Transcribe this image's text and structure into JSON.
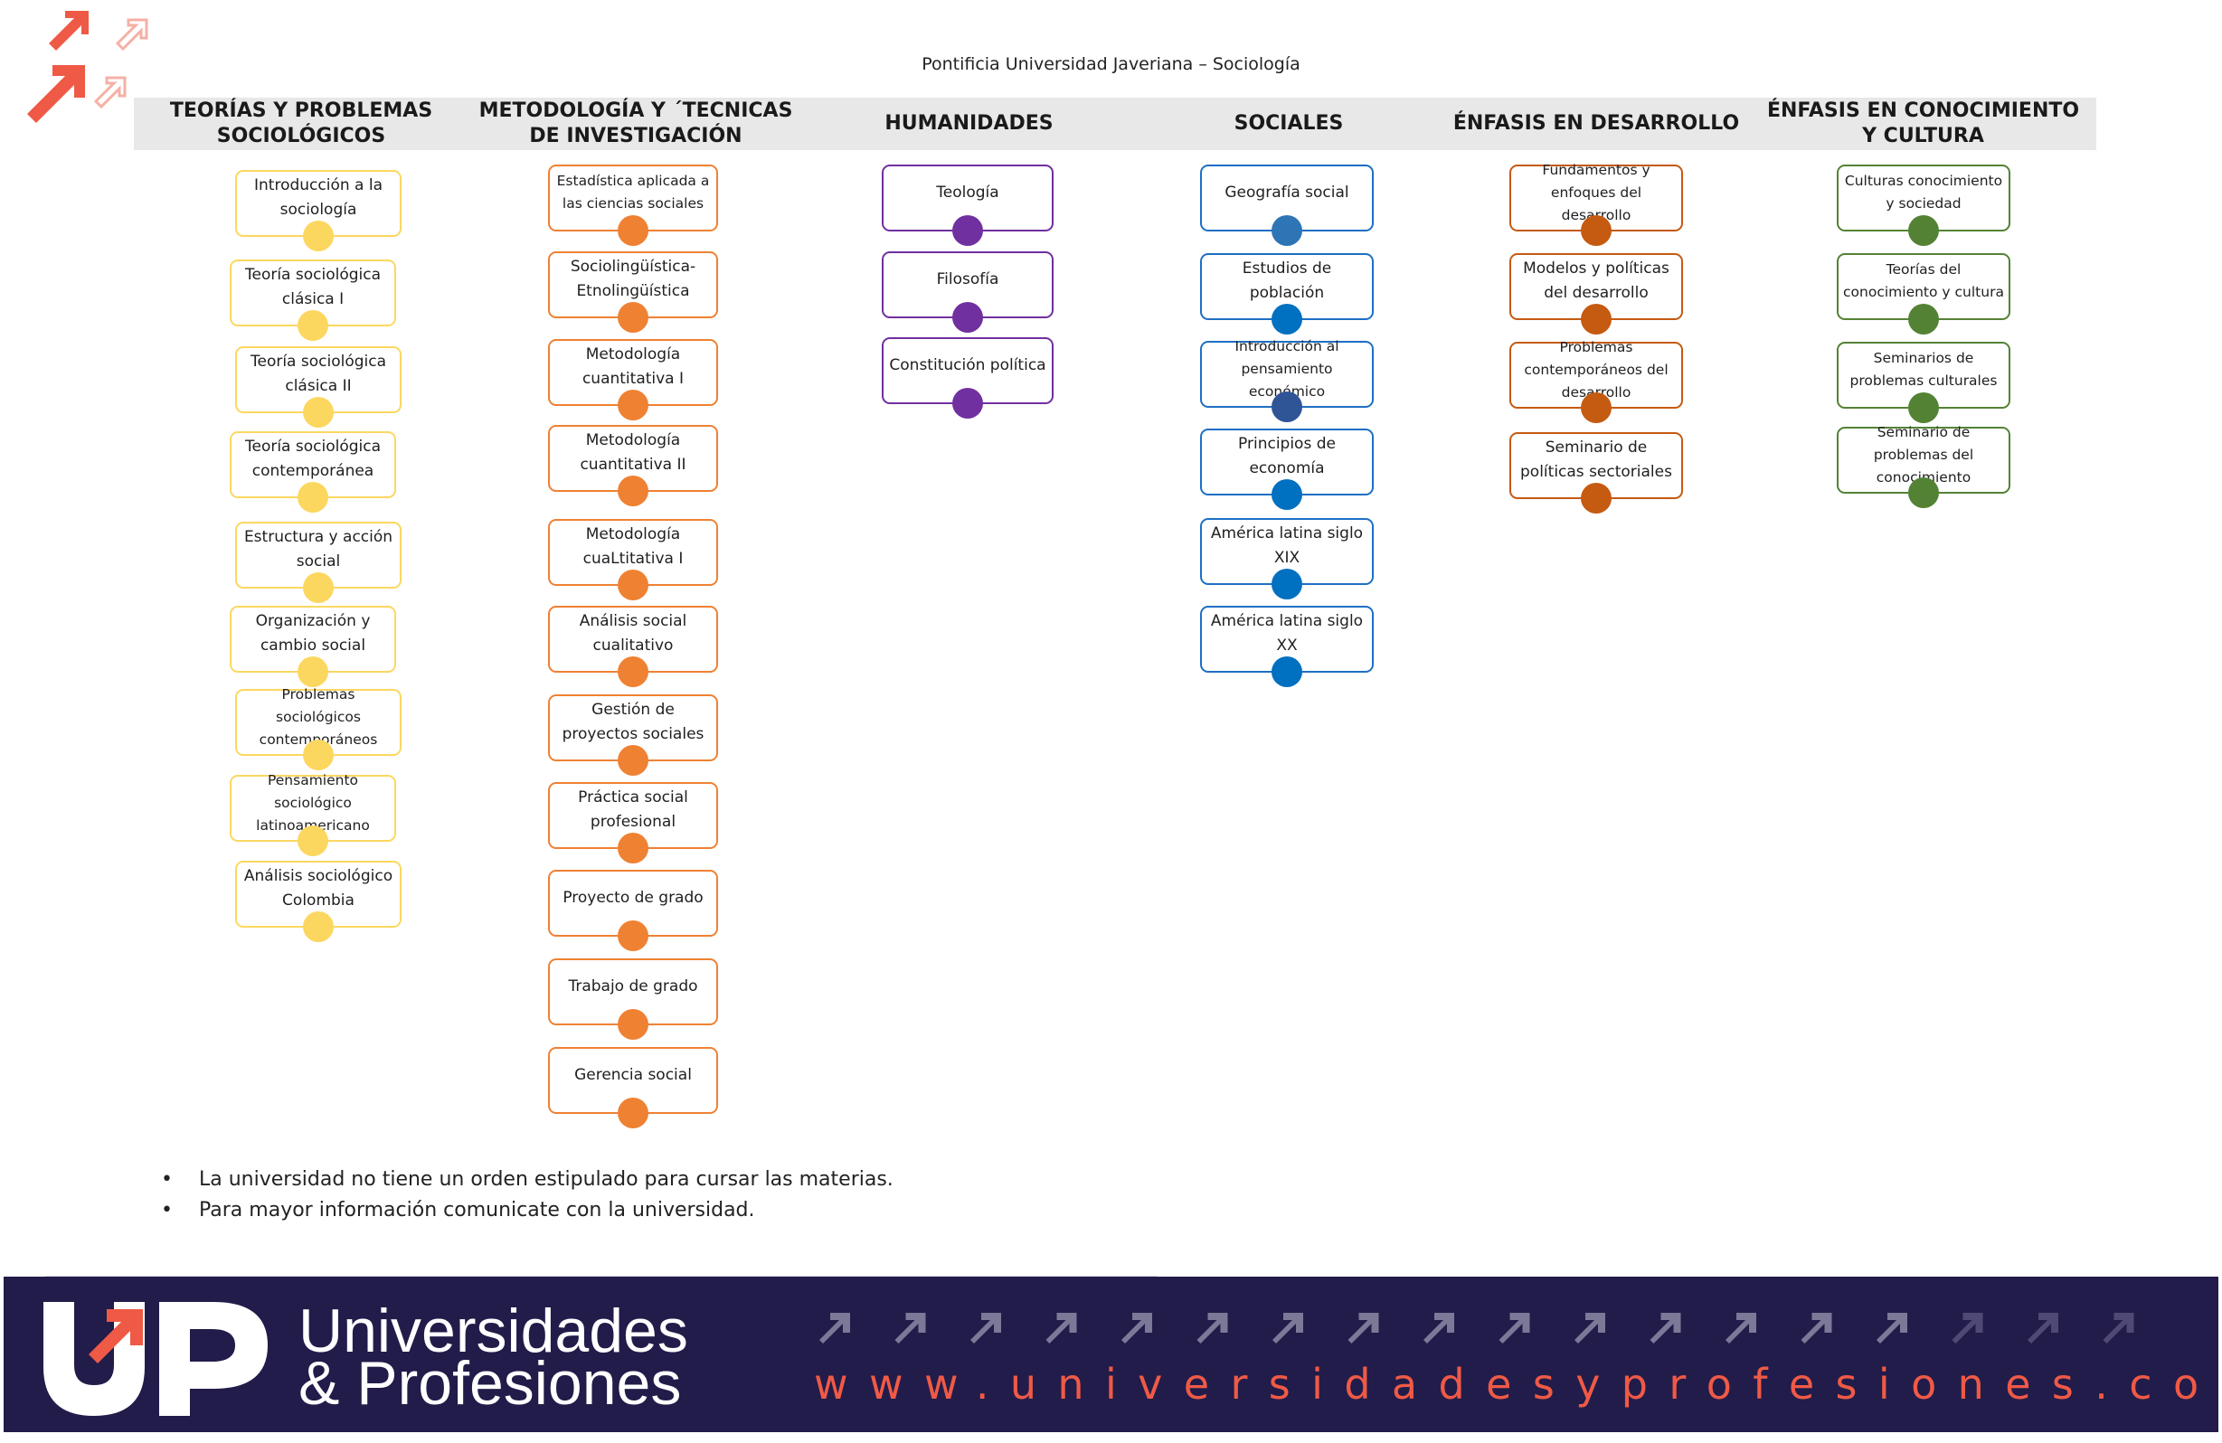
{
  "document": {
    "title": "Pontificia Universidad Javeriana –  Sociología"
  },
  "columns": [
    {
      "header": "TEORÍAS Y PROBLEMAS\nSOCIOLÓGICOS",
      "color": "#fcd760",
      "courses": [
        "Introducción a la sociología",
        "Teoría sociológica clásica I",
        "Teoría sociológica clásica II",
        "Teoría sociológica contemporánea",
        "Estructura y acción social",
        "Organización y cambio social",
        "Problemas sociológicos contemporáneos",
        "Pensamiento sociológico latinoamericano",
        "Análisis sociológico Colombia"
      ]
    },
    {
      "header": "METODOLOGÍA Y ´TECNICAS\nDE INVESTIGACIÓN",
      "color": "#ef8133",
      "courses": [
        "Estadística aplicada a las ciencias sociales",
        "Sociolingüística- Etnolingüística",
        "Metodología cuantitativa I",
        "Metodología cuantitativa II",
        "Metodología cuaLtitativa I",
        "Análisis social cualitativo",
        "Gestión de proyectos sociales",
        "Práctica social profesional",
        "Proyecto de grado",
        "Trabajo de grado",
        "Gerencia social"
      ]
    },
    {
      "header": "HUMANIDADES",
      "color": "#7030a0",
      "courses": [
        "Teología",
        "Filosofía",
        "Constitución política"
      ]
    },
    {
      "header": "SOCIALES",
      "color": "#1e6fc4",
      "dot_colors": [
        "#2e75b6",
        "#0070c0",
        "#2f5597",
        "#0070c0",
        "#0070c0",
        "#0070c0"
      ],
      "courses": [
        "Geografía social",
        "Estudios de población",
        "Introducción al pensamiento económico",
        "Principios de economía",
        "América latina siglo XIX",
        "América latina siglo XX"
      ]
    },
    {
      "header": "ÉNFASIS EN DESARROLLO",
      "color": "#c55a11",
      "courses": [
        "Fundamentos y enfoques del desarrollo",
        "Modelos y políticas del desarrollo",
        "Problemas contemporáneos del desarrollo",
        "Seminario de políticas sectoriales"
      ]
    },
    {
      "header": "ÉNFASIS EN CONOCIMIENTO\nY CULTURA",
      "color": "#548235",
      "courses": [
        "Culturas conocimiento y sociedad",
        "Teorías del conocimiento y cultura",
        "Seminarios de problemas culturales",
        "Seminario de problemas del conocimiento"
      ]
    }
  ],
  "notes": [
    "La universidad no tiene un orden estipulado para cursar las materias.",
    "Para mayor información comunicate con la universidad."
  ],
  "footer": {
    "brand_line1": "Universidades",
    "brand_line2": "& Profesiones",
    "website": "www.universidadesyprofesiones.com",
    "background": "#221c4a",
    "accent": "#ef5a46"
  }
}
